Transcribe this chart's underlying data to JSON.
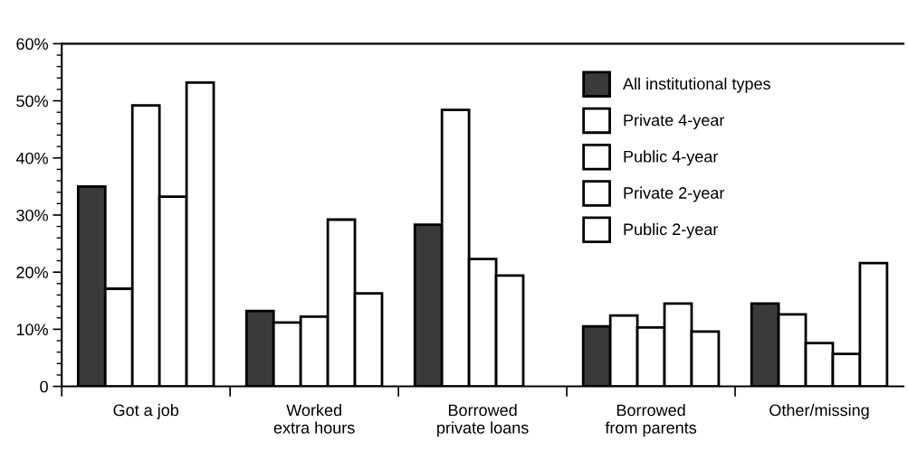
{
  "chart_data": {
    "type": "bar",
    "categories": [
      "Got a job",
      "Worked\nextra hours",
      "Borrowed\nprivate loans",
      "Borrowed\nfrom parents",
      "Other/missing"
    ],
    "series": [
      {
        "name": "All institutional types",
        "color": "#3a3a3a",
        "values": [
          35.0,
          13.2,
          28.3,
          10.5,
          14.5
        ]
      },
      {
        "name": "Private 4-year",
        "color": "#ffffff",
        "values": [
          17.1,
          11.2,
          48.4,
          12.4,
          12.6
        ]
      },
      {
        "name": "Public 4-year",
        "color": "#ffffff",
        "values": [
          49.2,
          12.2,
          22.3,
          10.3,
          7.6
        ]
      },
      {
        "name": "Private 2-year",
        "color": "#ffffff",
        "values": [
          33.2,
          29.2,
          19.4,
          14.5,
          5.7
        ]
      },
      {
        "name": "Public 2-year",
        "color": "#ffffff",
        "values": [
          53.2,
          16.3,
          null,
          9.6,
          21.6
        ]
      }
    ],
    "ylim": [
      0,
      60
    ],
    "yticks": [
      {
        "value": 0,
        "label": "0"
      },
      {
        "value": 10,
        "label": "10%"
      },
      {
        "value": 20,
        "label": "20%"
      },
      {
        "value": 30,
        "label": "30%"
      },
      {
        "value": 40,
        "label": "40%"
      },
      {
        "value": 50,
        "label": "50%"
      },
      {
        "value": 60,
        "label": "60%"
      }
    ],
    "grid": false,
    "legend": "top right"
  }
}
